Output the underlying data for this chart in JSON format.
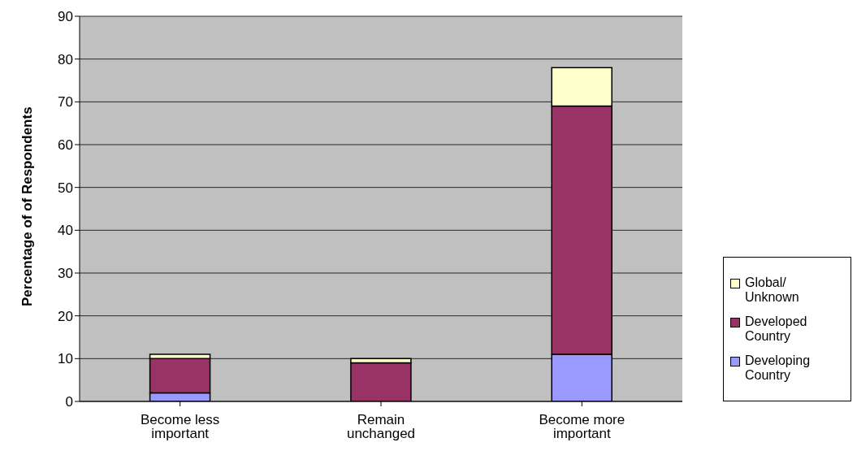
{
  "chart_data": {
    "type": "bar",
    "stacked": true,
    "ylabel": "Percentage of of Respondents",
    "categories": [
      "Become less important",
      "Remain unchanged",
      "Become more important"
    ],
    "series": [
      {
        "name": "Developing Country",
        "color": "#9999ff",
        "values": [
          2,
          0,
          11
        ]
      },
      {
        "name": "Developed Country",
        "color": "#993366",
        "values": [
          8,
          9,
          58
        ]
      },
      {
        "name": "Global/ Unknown",
        "color": "#ffffcc",
        "values": [
          1,
          1,
          9
        ]
      }
    ],
    "ylim": [
      0,
      90
    ],
    "yticks": [
      0,
      10,
      20,
      30,
      40,
      50,
      60,
      70,
      80,
      90
    ],
    "grid": "y",
    "legend": "right"
  }
}
